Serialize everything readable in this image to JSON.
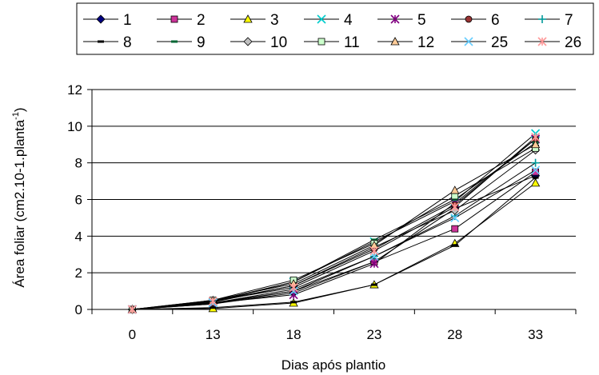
{
  "chart_data": {
    "type": "line",
    "title": "",
    "xlabel": "Dias após plantio",
    "ylabel_main": "Área foliar (cm2.10-1.planta",
    "ylabel_sup": "-1",
    "ylabel_close": ")",
    "categories": [
      "0",
      "13",
      "18",
      "23",
      "28",
      "33"
    ],
    "ylim": [
      0,
      12
    ],
    "yticks": [
      "0",
      "2",
      "4",
      "6",
      "8",
      "10",
      "12"
    ],
    "grid": "horizontal",
    "legend_position": "top",
    "series": [
      {
        "name": "1",
        "color": "#000080",
        "marker": "diamond",
        "values": [
          0,
          0.3,
          0.9,
          2.6,
          5.5,
          7.3
        ]
      },
      {
        "name": "2",
        "color": "#cc3399",
        "marker": "square",
        "values": [
          0,
          0.3,
          1.0,
          2.6,
          4.4,
          7.5
        ]
      },
      {
        "name": "3",
        "color": "#ffff00",
        "marker": "triangle",
        "values": [
          0,
          0.05,
          0.35,
          1.35,
          3.6,
          6.9
        ]
      },
      {
        "name": "4",
        "color": "#00cccc",
        "marker": "x",
        "values": [
          0,
          0.4,
          1.5,
          3.7,
          5.9,
          9.6
        ]
      },
      {
        "name": "5",
        "color": "#800080",
        "marker": "star",
        "values": [
          0,
          0.35,
          0.8,
          2.5,
          5.8,
          9.3
        ]
      },
      {
        "name": "6",
        "color": "#993333",
        "marker": "circle",
        "values": [
          0,
          0.45,
          1.3,
          3.3,
          5.7,
          9.3
        ]
      },
      {
        "name": "7",
        "color": "#009999",
        "marker": "plus",
        "values": [
          0,
          0.35,
          1.1,
          2.9,
          5.1,
          8.0
        ]
      },
      {
        "name": "8",
        "color": "#000000",
        "marker": "dash",
        "values": [
          0,
          0.1,
          0.4,
          1.35,
          3.5,
          7.2
        ]
      },
      {
        "name": "9",
        "color": "#006633",
        "marker": "dash",
        "values": [
          0,
          0.45,
          1.5,
          3.8,
          6.0,
          9.1
        ]
      },
      {
        "name": "10",
        "color": "#c0c0c0",
        "marker": "diamond",
        "values": [
          0,
          0.4,
          1.3,
          3.4,
          5.4,
          8.7
        ]
      },
      {
        "name": "11",
        "color": "#ccffcc",
        "marker": "square",
        "values": [
          0,
          0.5,
          1.6,
          3.6,
          6.2,
          8.8
        ]
      },
      {
        "name": "12",
        "color": "#ffcc99",
        "marker": "triangle",
        "values": [
          0,
          0.5,
          1.4,
          3.5,
          6.5,
          9.0
        ]
      },
      {
        "name": "25",
        "color": "#66ccff",
        "marker": "x",
        "values": [
          0,
          0.35,
          1.0,
          2.9,
          5.0,
          7.6
        ]
      },
      {
        "name": "26",
        "color": "#ff9999",
        "marker": "star",
        "values": [
          0,
          0.45,
          1.2,
          3.2,
          5.6,
          9.4
        ]
      }
    ]
  }
}
